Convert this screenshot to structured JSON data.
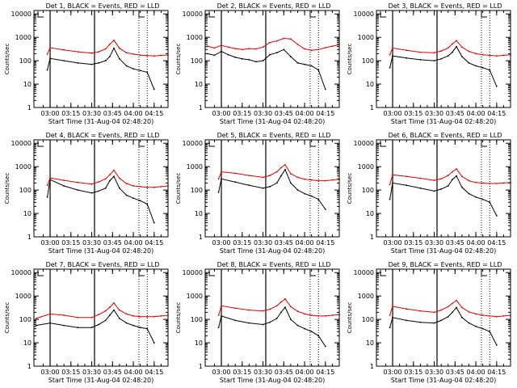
{
  "colors": {
    "events": "#000000",
    "lld": "#e00000",
    "axes": "#000000",
    "background": "#ffffff"
  },
  "chart_data": [
    {
      "type": "line",
      "title": "Det 1, BLACK = Events, RED = LLD",
      "xlabel": "Start Time (31-Aug-04 02:48:20)",
      "ylabel": "Counts/sec",
      "yscale": "log",
      "ylim": [
        1,
        14000
      ],
      "xlim": [
        "02:48:20",
        "04:25:00"
      ],
      "xticks": [
        "03:00",
        "03:15",
        "03:30",
        "03:45",
        "04:00",
        "04:15"
      ],
      "yticks": [
        "1",
        "10",
        "100",
        "1000",
        "10000"
      ],
      "vlines_solid": [
        "03:00",
        "03:32"
      ],
      "vlines_dotted": [
        "04:04",
        "04:10"
      ],
      "x": [
        "02:58",
        "03:00",
        "03:10",
        "03:20",
        "03:30",
        "03:35",
        "03:40",
        "03:43",
        "03:46",
        "03:50",
        "03:55",
        "04:00",
        "04:05",
        "04:10",
        "04:15",
        "04:20",
        "04:25"
      ],
      "series": [
        {
          "name": "Events",
          "color": "#000000",
          "values": [
            40,
            125,
            100,
            80,
            70,
            80,
            100,
            150,
            340,
            120,
            60,
            45,
            38,
            32,
            6,
            null,
            null
          ]
        },
        {
          "name": "LLD",
          "color": "#e00000",
          "values": [
            190,
            360,
            290,
            240,
            210,
            240,
            320,
            500,
            750,
            340,
            220,
            190,
            175,
            165,
            160,
            170,
            175
          ]
        }
      ]
    },
    {
      "type": "line",
      "title": "Det 2, BLACK = Events, RED = LLD",
      "xlabel": "Start Time (31-Aug-04 02:48:20)",
      "ylabel": "Counts/sec",
      "yscale": "log",
      "ylim": [
        1,
        14000
      ],
      "xlim": [
        "02:48:20",
        "04:25:00"
      ],
      "xticks": [
        "03:00",
        "03:15",
        "03:30",
        "03:45",
        "04:00",
        "04:15"
      ],
      "yticks": [
        "1",
        "10",
        "100",
        "1000",
        "10000"
      ],
      "vlines_solid": [
        "03:00",
        "03:32"
      ],
      "vlines_dotted": [
        "04:04",
        "04:10"
      ],
      "x": [
        "02:50",
        "02:55",
        "03:00",
        "03:05",
        "03:10",
        "03:15",
        "03:20",
        "03:25",
        "03:30",
        "03:35",
        "03:40",
        "03:45",
        "03:50",
        "03:55",
        "04:00",
        "04:05",
        "04:10",
        "04:15",
        "04:20",
        "04:25"
      ],
      "series": [
        {
          "name": "Events",
          "color": "#000000",
          "values": [
            200,
            170,
            250,
            180,
            140,
            120,
            110,
            90,
            100,
            180,
            220,
            300,
            150,
            80,
            70,
            60,
            40,
            6,
            null,
            null
          ]
        },
        {
          "name": "LLD",
          "color": "#e00000",
          "values": [
            420,
            350,
            450,
            380,
            330,
            300,
            330,
            320,
            380,
            600,
            700,
            900,
            850,
            500,
            320,
            280,
            300,
            360,
            420,
            480
          ]
        }
      ]
    },
    {
      "type": "line",
      "title": "Det 3, BLACK = Events, RED = LLD",
      "xlabel": "Start Time (31-Aug-04 02:48:20)",
      "ylabel": "Counts/sec",
      "yscale": "log",
      "ylim": [
        1,
        14000
      ],
      "xlim": [
        "02:48:20",
        "04:25:00"
      ],
      "xticks": [
        "03:00",
        "03:15",
        "03:30",
        "03:45",
        "04:00",
        "04:15"
      ],
      "yticks": [
        "1",
        "10",
        "100",
        "1000",
        "10000"
      ],
      "vlines_solid": [
        "03:00",
        "03:32"
      ],
      "vlines_dotted": [
        "04:04",
        "04:10"
      ],
      "x": [
        "02:58",
        "03:00",
        "03:10",
        "03:20",
        "03:30",
        "03:35",
        "03:40",
        "03:43",
        "03:46",
        "03:50",
        "03:55",
        "04:00",
        "04:05",
        "04:10",
        "04:15",
        "04:20",
        "04:25"
      ],
      "series": [
        {
          "name": "Events",
          "color": "#000000",
          "values": [
            50,
            160,
            130,
            110,
            100,
            120,
            160,
            230,
            400,
            150,
            80,
            60,
            50,
            40,
            8,
            null,
            null
          ]
        },
        {
          "name": "LLD",
          "color": "#e00000",
          "values": [
            180,
            350,
            280,
            230,
            220,
            260,
            350,
            520,
            720,
            380,
            250,
            200,
            180,
            170,
            160,
            170,
            180
          ]
        }
      ]
    },
    {
      "type": "line",
      "title": "Det 4, BLACK = Events, RED = LLD",
      "xlabel": "Start Time (31-Aug-04 02:48:20)",
      "ylabel": "Counts/sec",
      "yscale": "log",
      "ylim": [
        1,
        14000
      ],
      "xlim": [
        "02:48:20",
        "04:25:00"
      ],
      "xticks": [
        "03:00",
        "03:15",
        "03:30",
        "03:45",
        "04:00",
        "04:15"
      ],
      "yticks": [
        "1",
        "10",
        "100",
        "1000",
        "10000"
      ],
      "vlines_solid": [
        "03:00",
        "03:32"
      ],
      "vlines_dotted": [
        "04:04",
        "04:10"
      ],
      "x": [
        "02:58",
        "03:00",
        "03:10",
        "03:20",
        "03:30",
        "03:35",
        "03:40",
        "03:43",
        "03:46",
        "03:50",
        "03:55",
        "04:00",
        "04:05",
        "04:10",
        "04:15",
        "04:20",
        "04:25"
      ],
      "series": [
        {
          "name": "Events",
          "color": "#000000",
          "values": [
            50,
            280,
            150,
            100,
            75,
            90,
            120,
            250,
            380,
            120,
            60,
            45,
            35,
            25,
            4,
            null,
            null
          ]
        },
        {
          "name": "LLD",
          "color": "#e00000",
          "values": [
            160,
            330,
            260,
            210,
            180,
            220,
            300,
            450,
            700,
            320,
            190,
            150,
            140,
            130,
            130,
            140,
            150
          ]
        }
      ]
    },
    {
      "type": "line",
      "title": "Det 5, BLACK = Events, RED = LLD",
      "xlabel": "Start Time (31-Aug-04 02:48:20)",
      "ylabel": "Counts/sec",
      "yscale": "log",
      "ylim": [
        1,
        14000
      ],
      "xlim": [
        "02:48:20",
        "04:25:00"
      ],
      "xticks": [
        "03:00",
        "03:15",
        "03:30",
        "03:45",
        "04:00",
        "04:15"
      ],
      "yticks": [
        "1",
        "10",
        "100",
        "1000",
        "10000"
      ],
      "vlines_solid": [
        "03:00",
        "03:32"
      ],
      "vlines_dotted": [
        "04:04",
        "04:10"
      ],
      "x": [
        "02:58",
        "03:00",
        "03:10",
        "03:20",
        "03:30",
        "03:35",
        "03:40",
        "03:43",
        "03:46",
        "03:50",
        "03:55",
        "04:00",
        "04:05",
        "04:10",
        "04:15",
        "04:20",
        "04:25"
      ],
      "series": [
        {
          "name": "Events",
          "color": "#000000",
          "values": [
            80,
            300,
            220,
            160,
            120,
            140,
            200,
            400,
            750,
            200,
            100,
            70,
            55,
            40,
            15,
            null,
            null
          ]
        },
        {
          "name": "LLD",
          "color": "#e00000",
          "values": [
            300,
            600,
            520,
            420,
            350,
            420,
            600,
            900,
            1200,
            500,
            350,
            290,
            270,
            250,
            250,
            270,
            290
          ]
        }
      ]
    },
    {
      "type": "line",
      "title": "Det 6, BLACK = Events, RED = LLD",
      "xlabel": "Start Time (31-Aug-04 02:48:20)",
      "ylabel": "Counts/sec",
      "yscale": "log",
      "ylim": [
        1,
        14000
      ],
      "xlim": [
        "02:48:20",
        "04:25:00"
      ],
      "xticks": [
        "03:00",
        "03:15",
        "03:30",
        "03:45",
        "04:00",
        "04:15"
      ],
      "yticks": [
        "1",
        "10",
        "100",
        "1000",
        "10000"
      ],
      "vlines_solid": [
        "03:00",
        "03:32"
      ],
      "vlines_dotted": [
        "04:04",
        "04:10"
      ],
      "x": [
        "02:58",
        "03:00",
        "03:10",
        "03:20",
        "03:30",
        "03:35",
        "03:40",
        "03:43",
        "03:46",
        "03:50",
        "03:55",
        "04:00",
        "04:05",
        "04:10",
        "04:15",
        "04:20",
        "04:25"
      ],
      "series": [
        {
          "name": "Events",
          "color": "#000000",
          "values": [
            40,
            200,
            160,
            120,
            90,
            110,
            150,
            280,
            400,
            130,
            70,
            50,
            40,
            30,
            8,
            null,
            null
          ]
        },
        {
          "name": "LLD",
          "color": "#e00000",
          "values": [
            170,
            450,
            380,
            320,
            260,
            300,
            420,
            600,
            800,
            380,
            250,
            210,
            200,
            190,
            190,
            200,
            210
          ]
        }
      ]
    },
    {
      "type": "line",
      "title": "Det 7, BLACK = Events, RED = LLD",
      "xlabel": "Start Time (31-Aug-04 02:48:20)",
      "ylabel": "Counts/sec",
      "yscale": "log",
      "ylim": [
        1,
        14000
      ],
      "xlim": [
        "02:48:20",
        "04:25:00"
      ],
      "xticks": [
        "03:00",
        "03:15",
        "03:30",
        "03:45",
        "04:00",
        "04:15"
      ],
      "yticks": [
        "1",
        "10",
        "100",
        "1000",
        "10000"
      ],
      "vlines_solid": [
        "03:00",
        "03:32"
      ],
      "vlines_dotted": [
        "04:04",
        "04:10"
      ],
      "x": [
        "02:50",
        "03:00",
        "03:10",
        "03:20",
        "03:30",
        "03:35",
        "03:40",
        "03:43",
        "03:46",
        "03:50",
        "03:55",
        "04:00",
        "04:05",
        "04:10",
        "04:15",
        "04:20",
        "04:25"
      ],
      "series": [
        {
          "name": "Events",
          "color": "#000000",
          "values": [
            55,
            70,
            55,
            45,
            45,
            60,
            90,
            150,
            250,
            110,
            70,
            55,
            45,
            40,
            10,
            null,
            null
          ]
        },
        {
          "name": "LLD",
          "color": "#e00000",
          "values": [
            110,
            170,
            150,
            120,
            120,
            160,
            230,
            330,
            500,
            250,
            170,
            140,
            130,
            130,
            130,
            140,
            150
          ]
        }
      ]
    },
    {
      "type": "line",
      "title": "Det 8, BLACK = Events, RED = LLD",
      "xlabel": "Start Time (31-Aug-04 02:48:20)",
      "ylabel": "Counts/sec",
      "yscale": "log",
      "ylim": [
        1,
        14000
      ],
      "xlim": [
        "02:48:20",
        "04:25:00"
      ],
      "xticks": [
        "03:00",
        "03:15",
        "03:30",
        "03:45",
        "04:00",
        "04:15"
      ],
      "yticks": [
        "1",
        "10",
        "100",
        "1000",
        "10000"
      ],
      "vlines_solid": [
        "03:00",
        "03:32"
      ],
      "vlines_dotted": [
        "04:04",
        "04:10"
      ],
      "x": [
        "02:58",
        "03:00",
        "03:10",
        "03:20",
        "03:30",
        "03:35",
        "03:40",
        "03:43",
        "03:46",
        "03:50",
        "03:55",
        "04:00",
        "04:05",
        "04:10",
        "04:15",
        "04:20",
        "04:25"
      ],
      "series": [
        {
          "name": "Events",
          "color": "#000000",
          "values": [
            45,
            140,
            90,
            70,
            60,
            75,
            110,
            200,
            330,
            100,
            55,
            40,
            30,
            20,
            7,
            null,
            null
          ]
        },
        {
          "name": "LLD",
          "color": "#e00000",
          "values": [
            150,
            380,
            300,
            250,
            230,
            270,
            380,
            550,
            750,
            350,
            220,
            170,
            150,
            140,
            140,
            150,
            160
          ]
        }
      ]
    },
    {
      "type": "line",
      "title": "Det 9, BLACK = Events, RED = LLD",
      "xlabel": "Start Time (31-Aug-04 02:48:20)",
      "ylabel": "Counts/sec",
      "yscale": "log",
      "ylim": [
        1,
        14000
      ],
      "xlim": [
        "02:48:20",
        "04:25:00"
      ],
      "xticks": [
        "03:00",
        "03:15",
        "03:30",
        "03:45",
        "04:00",
        "04:15"
      ],
      "yticks": [
        "1",
        "10",
        "100",
        "1000",
        "10000"
      ],
      "vlines_solid": [
        "03:00",
        "03:32"
      ],
      "vlines_dotted": [
        "04:04",
        "04:10"
      ],
      "x": [
        "02:58",
        "03:00",
        "03:10",
        "03:20",
        "03:30",
        "03:35",
        "03:40",
        "03:43",
        "03:46",
        "03:50",
        "03:55",
        "04:00",
        "04:05",
        "04:10",
        "04:15",
        "04:20",
        "04:25"
      ],
      "series": [
        {
          "name": "Events",
          "color": "#000000",
          "values": [
            45,
            120,
            90,
            75,
            70,
            90,
            130,
            200,
            320,
            120,
            70,
            50,
            40,
            30,
            8,
            null,
            null
          ]
        },
        {
          "name": "LLD",
          "color": "#e00000",
          "values": [
            150,
            360,
            280,
            230,
            200,
            250,
            350,
            480,
            650,
            320,
            210,
            170,
            150,
            140,
            130,
            140,
            150
          ]
        }
      ]
    }
  ]
}
